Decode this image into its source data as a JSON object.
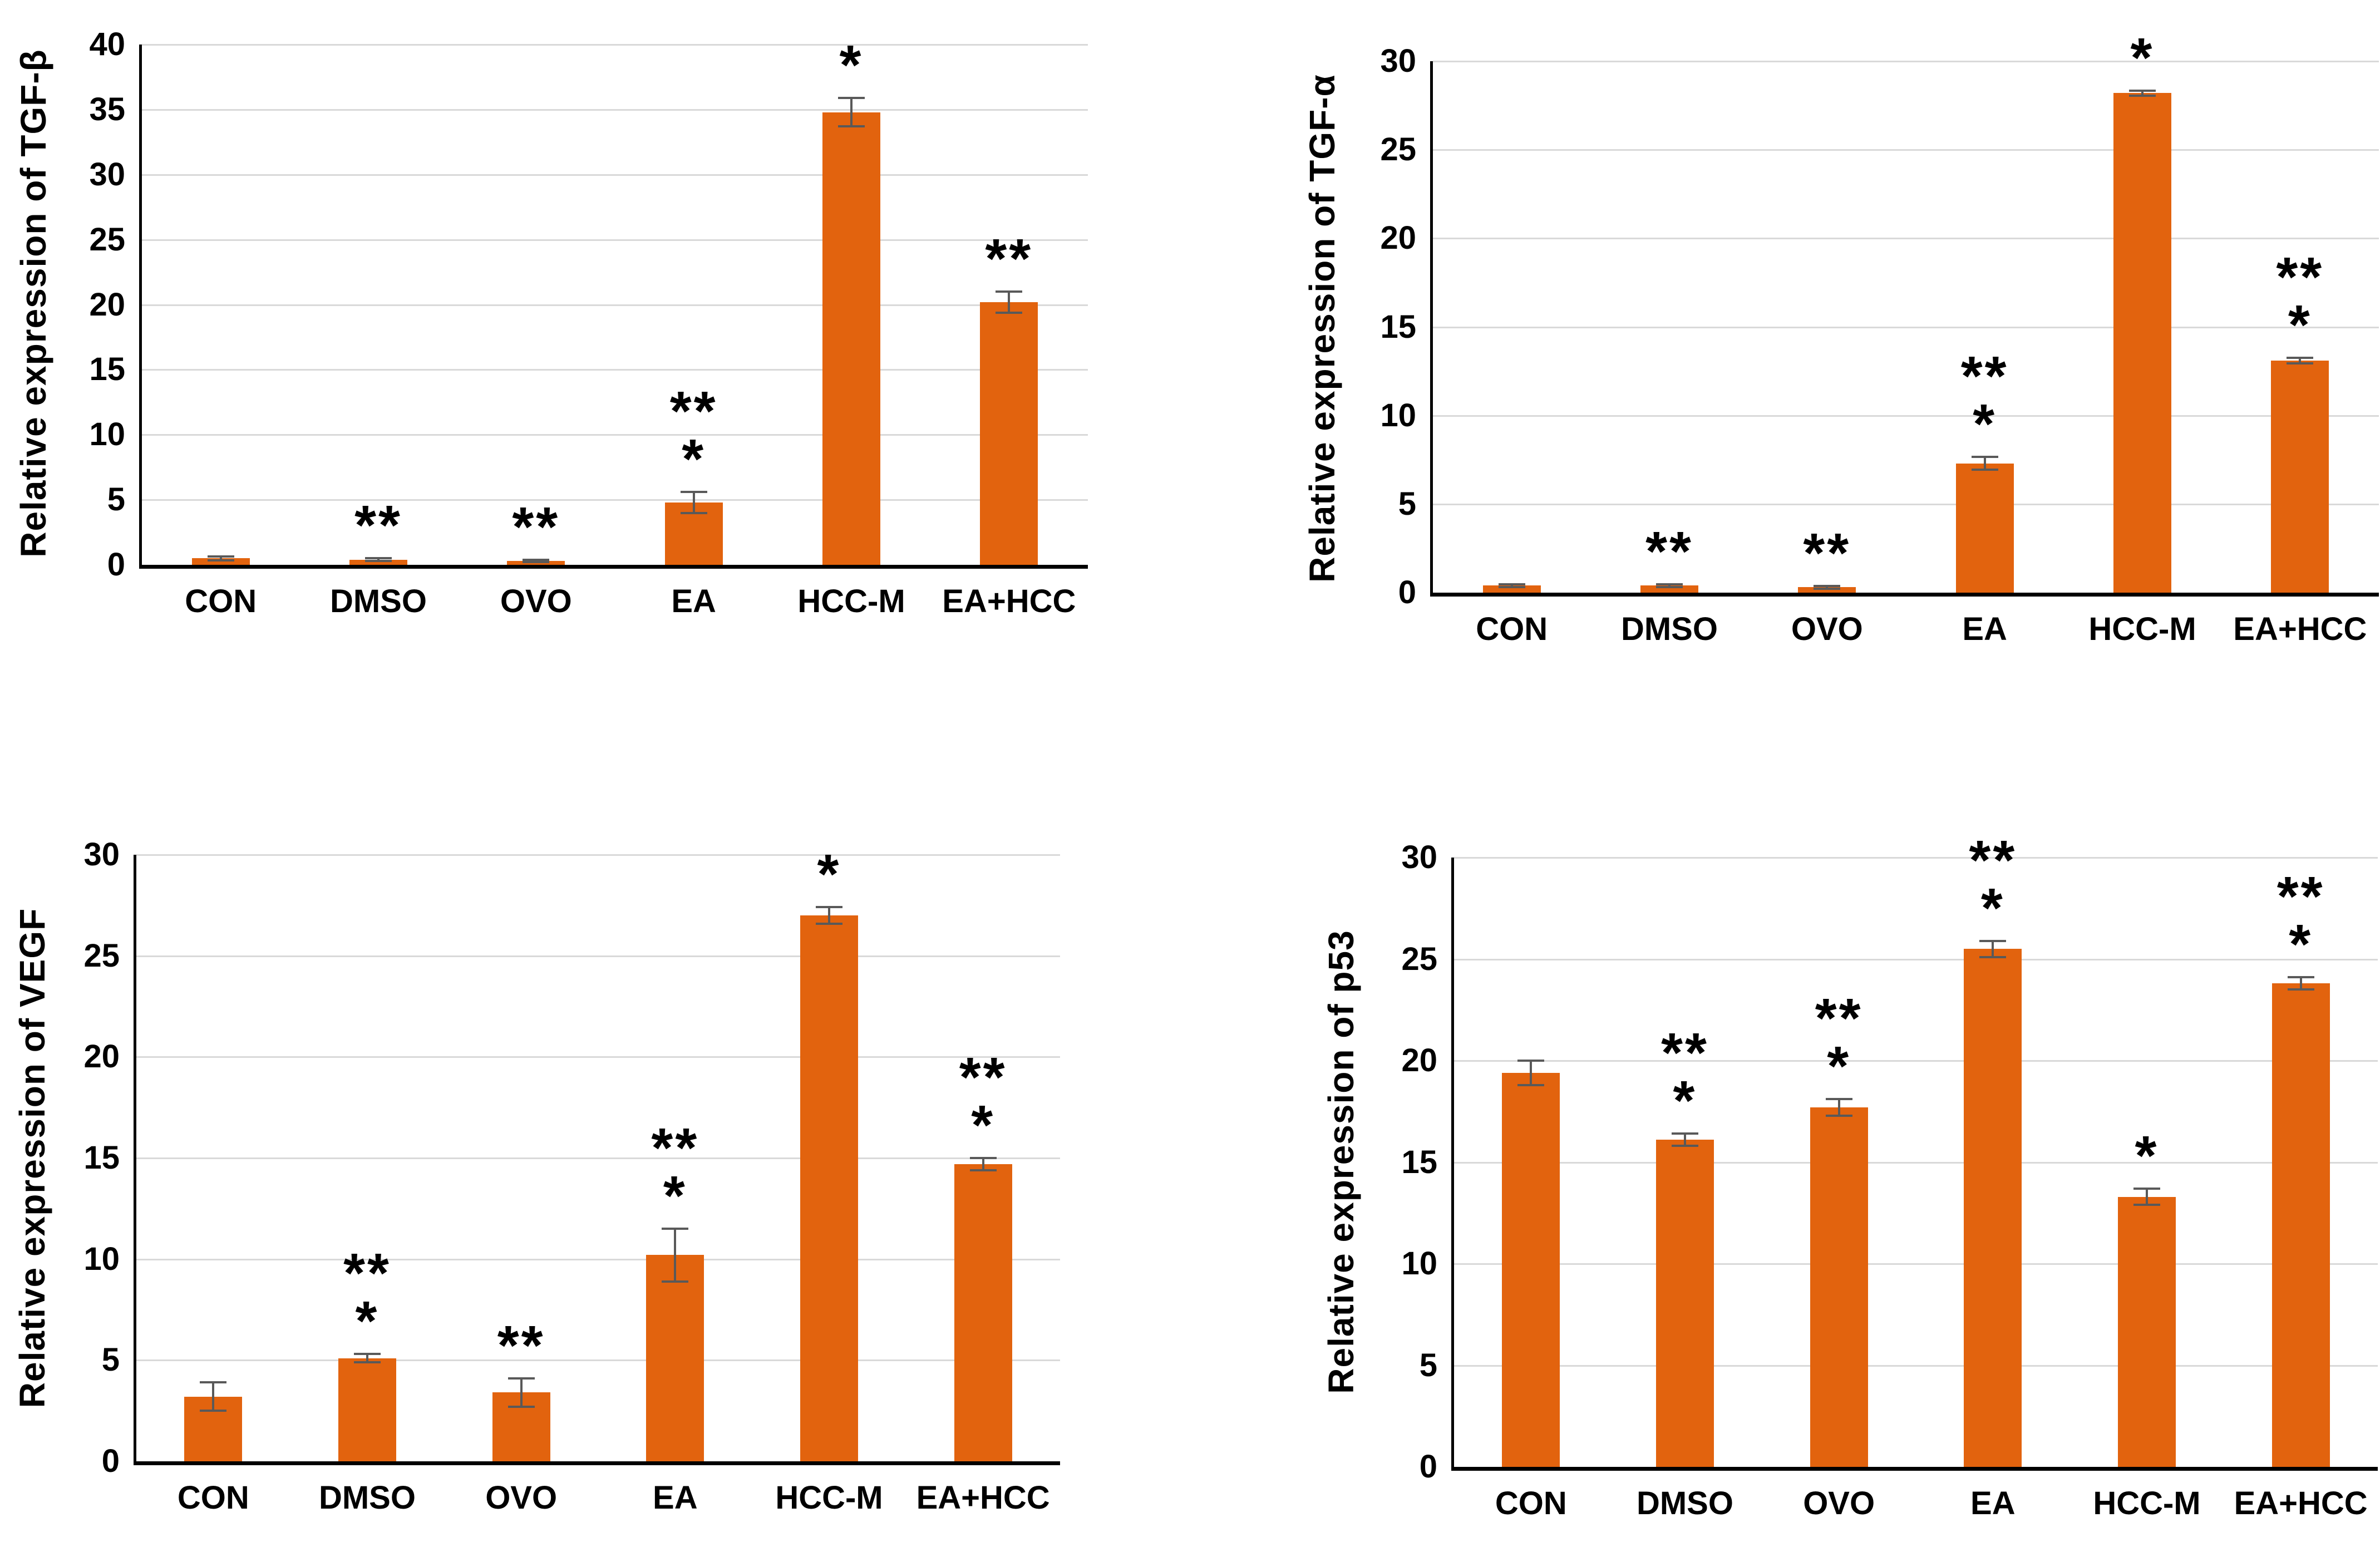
{
  "figure": {
    "description": "Four-panel bar chart figure of relative gene expression",
    "categories_shared": [
      "CON",
      "DMSO",
      "OVO",
      "EA",
      "HCC-M",
      "EA+HCC"
    ]
  },
  "colors": {
    "bar": "#e2630e",
    "error_bar": "#595959",
    "gridline": "#d9d9d9",
    "axis": "#000000",
    "text": "#000000",
    "background": "#ffffff"
  },
  "chart_data": [
    {
      "type": "bar",
      "title": "",
      "ylabel": "Relative expression of TGF-β",
      "xlabel": "",
      "categories": [
        "CON",
        "DMSO",
        "OVO",
        "EA",
        "HCC-M",
        "EA+HCC"
      ],
      "values": [
        0.5,
        0.4,
        0.3,
        4.8,
        34.8,
        20.2
      ],
      "errors": [
        0.15,
        0.12,
        0.1,
        0.8,
        1.1,
        0.8
      ],
      "annotations": [
        [],
        [
          "**"
        ],
        [
          "**"
        ],
        [
          "**",
          "*"
        ],
        [
          "*"
        ],
        [
          "**"
        ]
      ],
      "ylim": [
        0,
        40
      ],
      "yticks": [
        0,
        5,
        10,
        15,
        20,
        25,
        30,
        35,
        40
      ],
      "grid": true,
      "legend": null
    },
    {
      "type": "bar",
      "title": "",
      "ylabel": "Relative expression of TGF-α",
      "xlabel": "",
      "categories": [
        "CON",
        "DMSO",
        "OVO",
        "EA",
        "HCC-M",
        "EA+HCC"
      ],
      "values": [
        0.4,
        0.4,
        0.3,
        7.3,
        28.2,
        13.1
      ],
      "errors": [
        0.08,
        0.08,
        0.08,
        0.35,
        0.15,
        0.15
      ],
      "annotations": [
        [],
        [
          "**"
        ],
        [
          "**"
        ],
        [
          "**",
          "*"
        ],
        [
          "*"
        ],
        [
          "**",
          "*"
        ]
      ],
      "ylim": [
        0,
        30
      ],
      "yticks": [
        0,
        5,
        10,
        15,
        20,
        25,
        30
      ],
      "grid": true,
      "legend": null
    },
    {
      "type": "bar",
      "title": "",
      "ylabel": "Relative expression of VEGF",
      "xlabel": "",
      "categories": [
        "CON",
        "DMSO",
        "OVO",
        "EA",
        "HCC-M",
        "EA+HCC"
      ],
      "values": [
        3.2,
        5.1,
        3.4,
        10.2,
        27.0,
        14.7
      ],
      "errors": [
        0.7,
        0.2,
        0.7,
        1.3,
        0.4,
        0.3
      ],
      "annotations": [
        [],
        [
          "**",
          "*"
        ],
        [
          "**"
        ],
        [
          "**",
          "*"
        ],
        [
          "*"
        ],
        [
          "**",
          "*"
        ]
      ],
      "ylim": [
        0,
        30
      ],
      "yticks": [
        0,
        5,
        10,
        15,
        20,
        25,
        30
      ],
      "grid": true,
      "legend": null
    },
    {
      "type": "bar",
      "title": "",
      "ylabel": "Relative expression of p53",
      "xlabel": "",
      "categories": [
        "CON",
        "DMSO",
        "OVO",
        "EA",
        "HCC-M",
        "EA+HCC"
      ],
      "values": [
        19.4,
        16.1,
        17.7,
        25.5,
        13.3,
        23.8
      ],
      "errors": [
        0.6,
        0.3,
        0.4,
        0.4,
        0.4,
        0.3
      ],
      "annotations": [
        [],
        [
          "**",
          "*"
        ],
        [
          "**",
          "*"
        ],
        [
          "**",
          "*"
        ],
        [
          "*"
        ],
        [
          "**",
          "*"
        ]
      ],
      "ylim": [
        0,
        30
      ],
      "yticks": [
        0,
        5,
        10,
        15,
        20,
        25,
        30
      ],
      "grid": true,
      "legend": null
    }
  ]
}
